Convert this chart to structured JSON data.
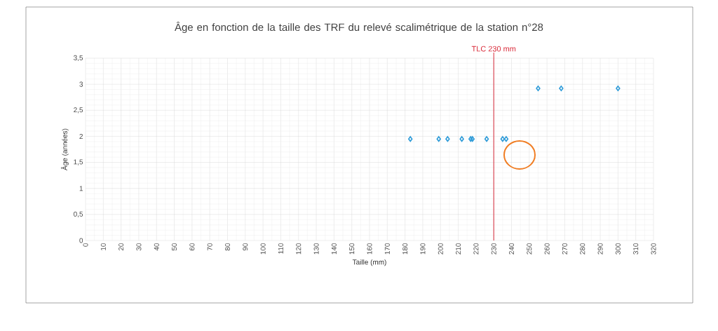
{
  "chart_data": {
    "type": "scatter",
    "title": "Âge en fonction de la taille des TRF du  relevé scalimétrique de la station n°28",
    "xlabel": "Taille (mm)",
    "ylabel": "Âge (années)",
    "x": [
      183,
      199,
      204,
      212,
      217,
      218,
      226,
      235,
      237,
      255,
      268,
      300
    ],
    "values": [
      1.95,
      1.95,
      1.95,
      1.95,
      1.95,
      1.95,
      1.95,
      1.95,
      1.95,
      2.92,
      2.92,
      2.92
    ],
    "color": "#2b9ad8",
    "marker": "diamond",
    "grid": true,
    "xlim": [
      0,
      320
    ],
    "xticks": [
      0,
      10,
      20,
      30,
      40,
      50,
      60,
      70,
      80,
      90,
      100,
      110,
      120,
      130,
      140,
      150,
      160,
      170,
      180,
      190,
      200,
      210,
      220,
      230,
      240,
      250,
      260,
      270,
      280,
      290,
      300,
      310,
      320
    ],
    "ylim": [
      0,
      3.5
    ],
    "yticks": [
      0,
      {
        "value": 0.5,
        "label": "0,5"
      },
      1,
      {
        "value": 1.5,
        "label": "1,5"
      },
      2,
      {
        "value": 2.5,
        "label": "2,5"
      },
      3,
      {
        "value": 3.5,
        "label": "3,5"
      }
    ],
    "ref_lines": [
      {
        "axis": "x",
        "value": 230,
        "label": "TLC 230 mm",
        "color": "#d92b3a"
      }
    ]
  }
}
